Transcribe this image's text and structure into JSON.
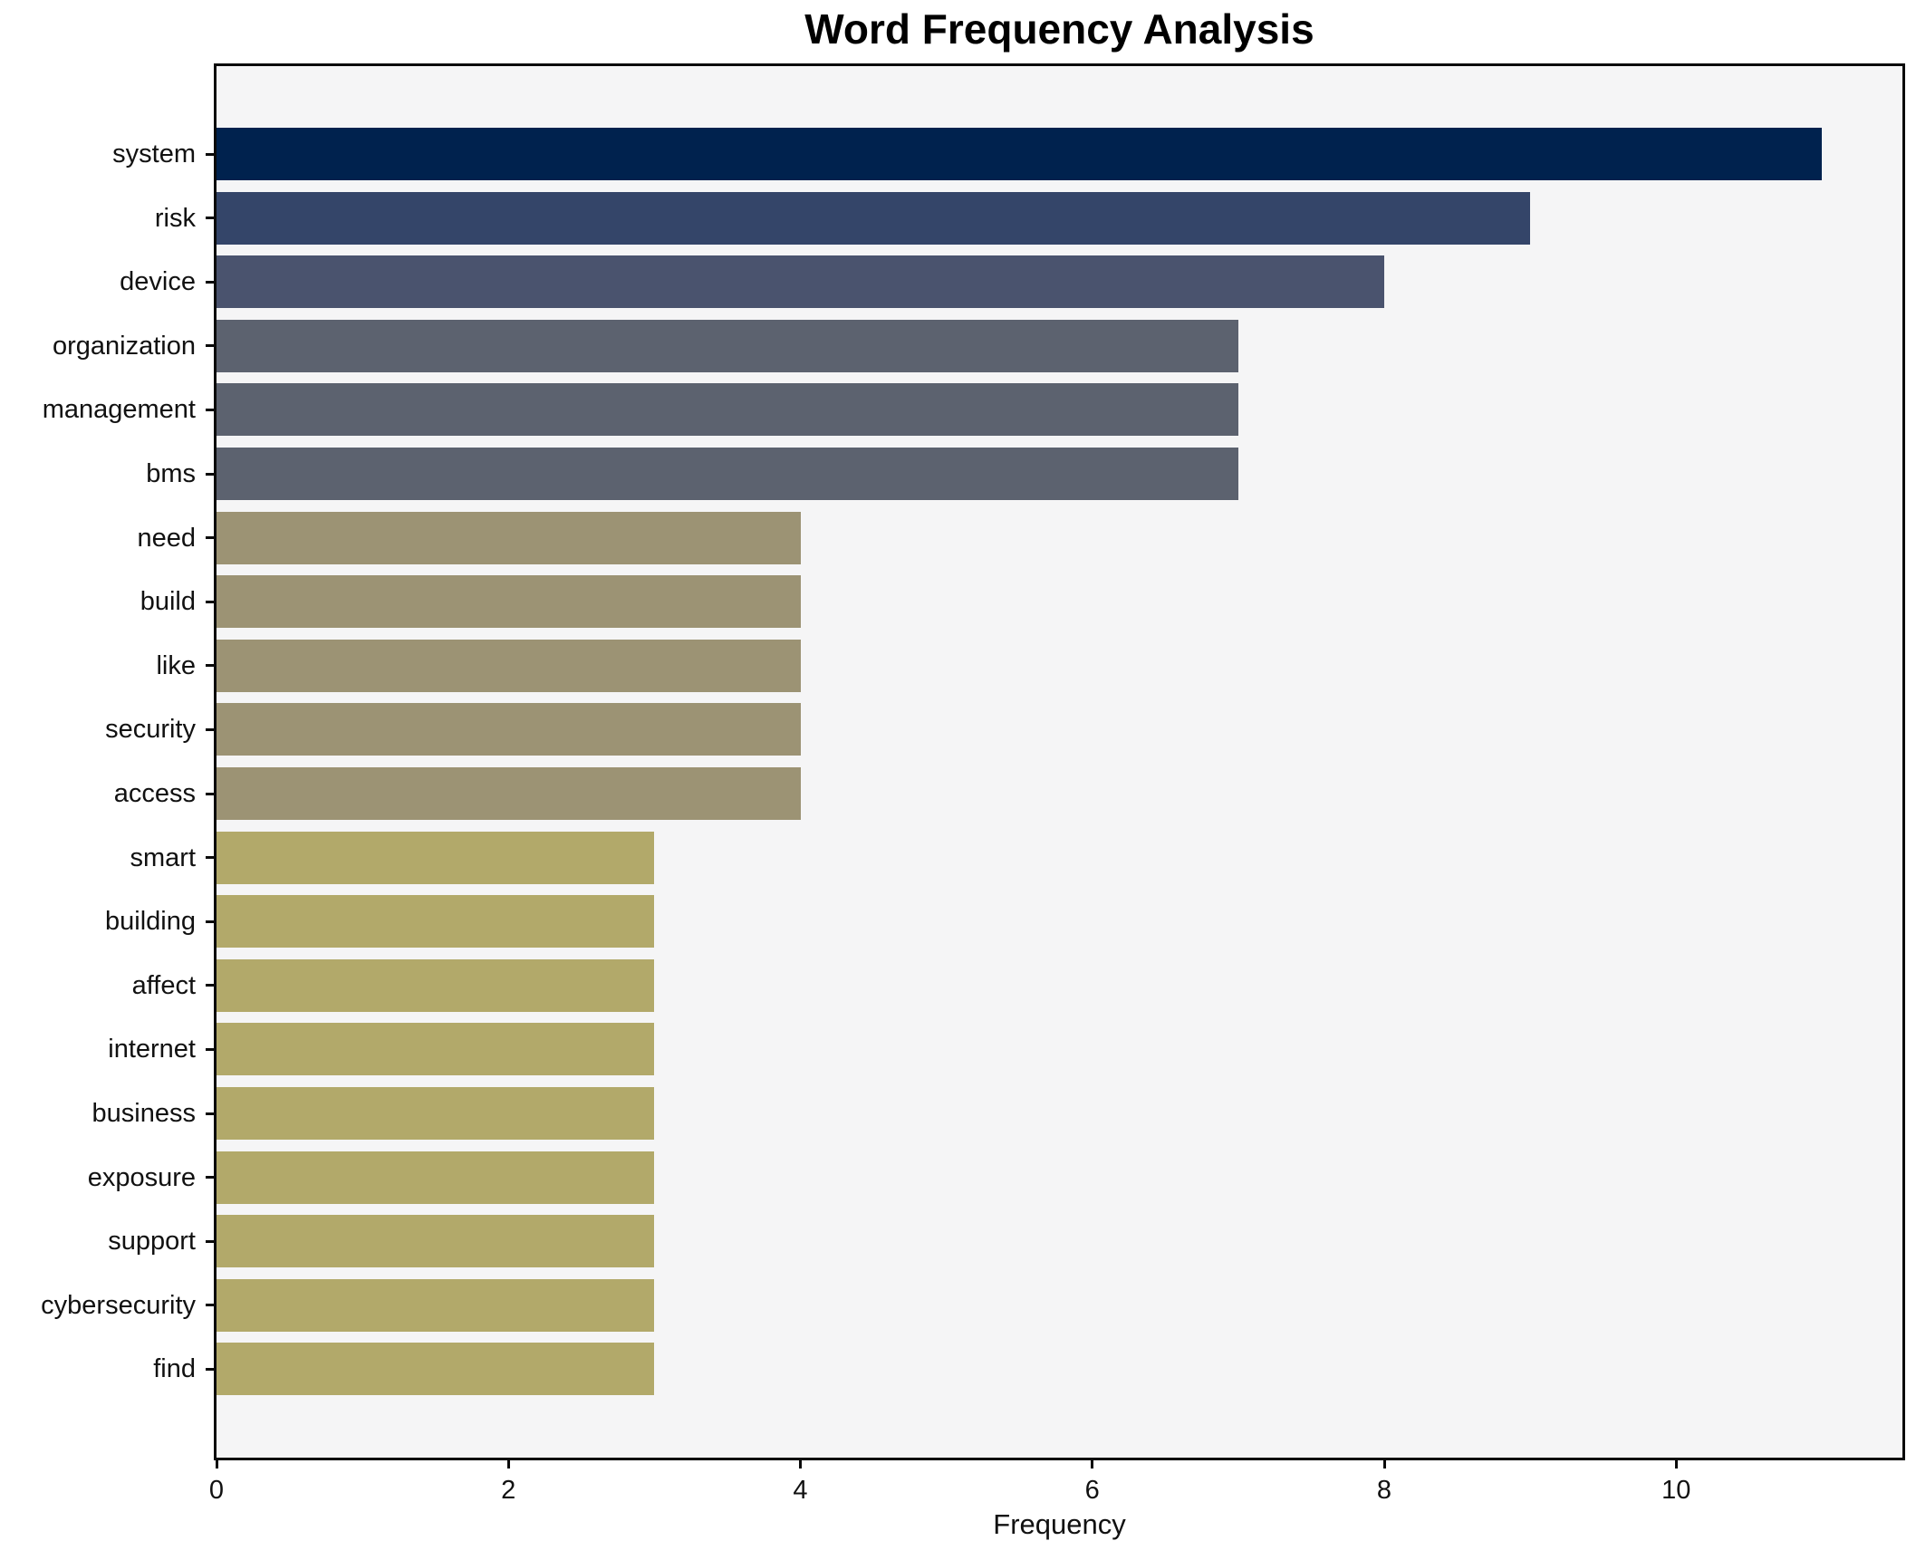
{
  "chart_data": {
    "type": "bar",
    "orientation": "horizontal",
    "title": "Word Frequency Analysis",
    "xlabel": "Frequency",
    "ylabel": "",
    "categories": [
      "system",
      "risk",
      "device",
      "organization",
      "management",
      "bms",
      "need",
      "build",
      "like",
      "security",
      "access",
      "smart",
      "building",
      "affect",
      "internet",
      "business",
      "exposure",
      "support",
      "cybersecurity",
      "find"
    ],
    "values": [
      11,
      9,
      8,
      7,
      7,
      7,
      4,
      4,
      4,
      4,
      4,
      3,
      3,
      3,
      3,
      3,
      3,
      3,
      3,
      3
    ],
    "bar_colors": [
      "#00224e",
      "#344569",
      "#4a536e",
      "#5c626f",
      "#5c626f",
      "#5c626f",
      "#9c9374",
      "#9c9374",
      "#9c9374",
      "#9c9374",
      "#9c9374",
      "#b2a96a",
      "#b2a96a",
      "#b2a96a",
      "#b2a96a",
      "#b2a96a",
      "#b2a96a",
      "#b2a96a",
      "#b2a96a",
      "#b2a96a"
    ],
    "xticks": [
      0,
      2,
      4,
      6,
      8,
      10
    ],
    "xlim": [
      0,
      11.55
    ],
    "grid": false,
    "legend": null,
    "plot_background": "#f5f5f6",
    "figure_background": "#ffffff",
    "spine_color": "#0a0a0a",
    "text_color": "#111111"
  }
}
